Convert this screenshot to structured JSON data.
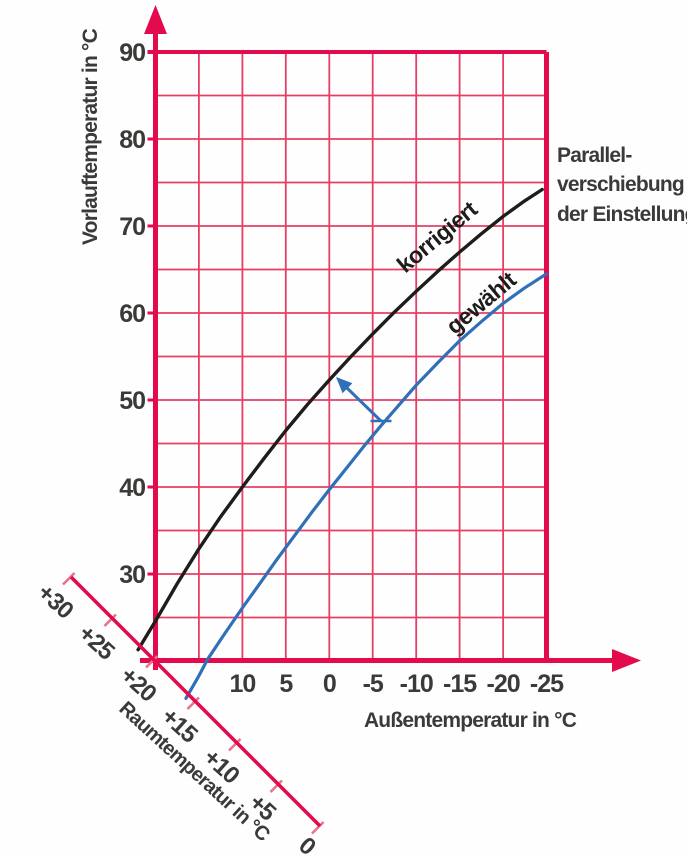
{
  "colors": {
    "axis_red": "#e30b4d",
    "grid_red": "#e63f65",
    "room_tick_red": "#ea7288",
    "curve_black": "#1d1d1b",
    "curve_blue": "#2f70b8",
    "text": "#3a3a38"
  },
  "y_axis": {
    "title": "Vorlauftemperatur in °C",
    "ticks": [
      "90",
      "80",
      "70",
      "60",
      "50",
      "40",
      "30"
    ]
  },
  "x_axis": {
    "title": "Außentemperatur in °C",
    "ticks": [
      "10",
      "5",
      "0",
      "-5",
      "-10",
      "-15",
      "-20",
      "-25"
    ]
  },
  "room_axis": {
    "title": "Raumtemperatur in °C",
    "ticks": [
      "+30",
      "+25",
      "+20",
      "+15",
      "+10",
      "+5",
      "0"
    ]
  },
  "curve_labels": {
    "corrected": "korrigiert",
    "selected": "gewählt"
  },
  "annotation": {
    "line1": "Parallel-",
    "line2": "verschiebung",
    "line3": "der Einstellung"
  },
  "chart_data": {
    "type": "line",
    "title": "",
    "xlabel": "Außentemperatur in °C",
    "ylabel": "Vorlauftemperatur in °C",
    "x_range": [
      20,
      -25
    ],
    "y_range": [
      20,
      90
    ],
    "x_ticks": [
      10,
      5,
      0,
      -5,
      -10,
      -15,
      -20,
      -25
    ],
    "y_ticks": [
      90,
      80,
      70,
      60,
      50,
      40,
      30
    ],
    "grid": {
      "on": true,
      "step_x": 5,
      "step_y": 5
    },
    "room_axis": {
      "label": "Raumtemperatur in °C",
      "ticks": [
        30,
        25,
        20,
        15,
        10,
        5,
        0
      ],
      "orientation": "diagonal 45°, line where flow temp equals room temp, crossing origin at +20"
    },
    "series": [
      {
        "name": "korrigiert",
        "color": "#1d1d1b",
        "points": [
          [
            22.0,
            21.3
          ],
          [
            20,
            24.6
          ],
          [
            17.5,
            28.9
          ],
          [
            15,
            32.9
          ],
          [
            12.5,
            36.6
          ],
          [
            10,
            40
          ],
          [
            7.5,
            43.3
          ],
          [
            5,
            46.5
          ],
          [
            2.5,
            49.5
          ],
          [
            0,
            52.3
          ],
          [
            -2.5,
            55.0
          ],
          [
            -5,
            57.6
          ],
          [
            -7.5,
            60.1
          ],
          [
            -10,
            62.5
          ],
          [
            -12.5,
            64.8
          ],
          [
            -15,
            67.0
          ],
          [
            -17.5,
            69.1
          ],
          [
            -20,
            71.1
          ],
          [
            -22.5,
            72.9
          ],
          [
            -24.5,
            74.2
          ]
        ]
      },
      {
        "name": "gewählt",
        "color": "#2f70b8",
        "points": [
          [
            16.5,
            15.7
          ],
          [
            15,
            18.3
          ],
          [
            14,
            20.2
          ],
          [
            12,
            23.2
          ],
          [
            10,
            26.1
          ],
          [
            8,
            28.9
          ],
          [
            6,
            31.7
          ],
          [
            4,
            34.4
          ],
          [
            2,
            37.1
          ],
          [
            0,
            39.7
          ],
          [
            -2,
            42.2
          ],
          [
            -4,
            44.7
          ],
          [
            -6,
            47.1
          ],
          [
            -8,
            49.4
          ],
          [
            -10,
            51.7
          ],
          [
            -12.5,
            54.3
          ],
          [
            -15,
            56.8
          ],
          [
            -17.5,
            59.0
          ],
          [
            -20,
            61.1
          ],
          [
            -22.5,
            62.9
          ],
          [
            -25,
            64.5
          ]
        ]
      }
    ],
    "annotations": [
      {
        "type": "text",
        "text": "Parallel- verschiebung der Einstellung",
        "position": "right of plot border, upper area"
      },
      {
        "type": "arrow",
        "from_xy": [
          -6,
          47.6
        ],
        "to_xy": [
          -0.8,
          52.6
        ],
        "color": "#2f70b8",
        "meaning": "parallel shift from curve gewählt to curve korrigiert"
      }
    ],
    "legend_position": "labels along curves"
  }
}
